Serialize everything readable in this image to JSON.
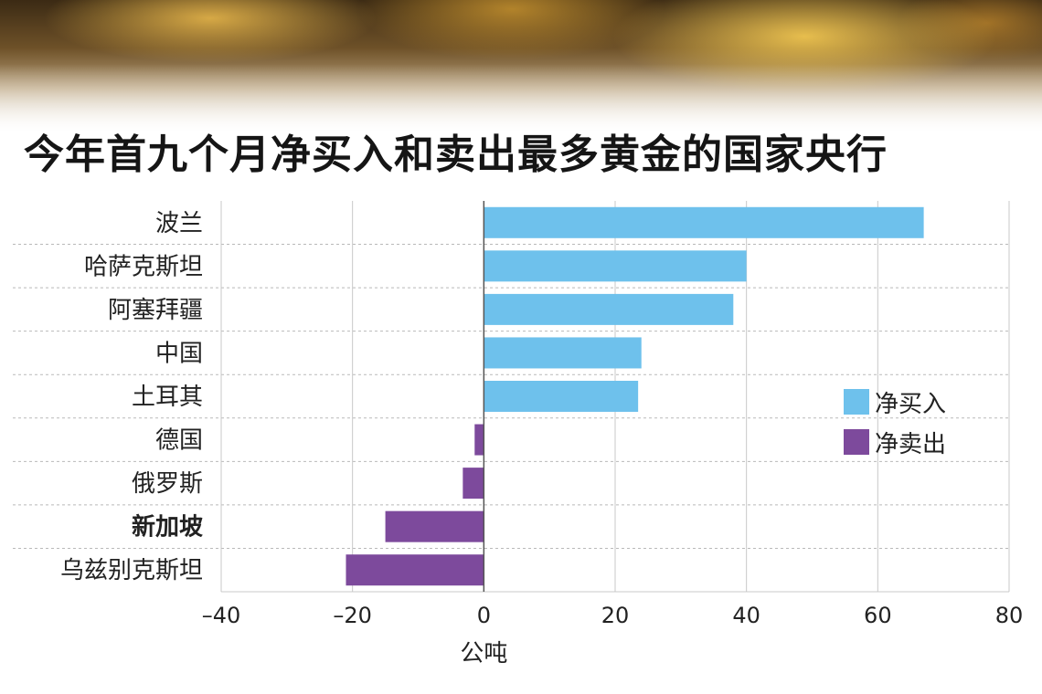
{
  "title": "今年首九个月净买入和卖出最多黄金的国家央行",
  "chart_data": {
    "type": "bar",
    "orientation": "horizontal",
    "categories": [
      "波兰",
      "哈萨克斯坦",
      "阿塞拜疆",
      "中国",
      "土耳其",
      "德国",
      "俄罗斯",
      "新加坡",
      "乌兹别克斯坦"
    ],
    "highlight_category": "新加坡",
    "values": [
      67,
      40,
      38,
      24,
      23.5,
      -1.4,
      -3.2,
      -15,
      -21
    ],
    "xlim": [
      -40,
      80
    ],
    "xticks": [
      -40,
      -20,
      0,
      20,
      40,
      60,
      80
    ],
    "xtick_labels": [
      "–40",
      "–20",
      "0",
      "20",
      "40",
      "60",
      "80"
    ],
    "xlabel": "公吨",
    "ylabel": "",
    "grid": "vertical solid at ticks, horizontal dashed between rows",
    "legend": {
      "position": "right-middle",
      "entries": [
        {
          "label": "净买入",
          "color": "#6ec1ec"
        },
        {
          "label": "净卖出",
          "color": "#7d4a9c"
        }
      ]
    },
    "colors": {
      "positive": "#6ec1ec",
      "negative": "#7d4a9c"
    }
  }
}
